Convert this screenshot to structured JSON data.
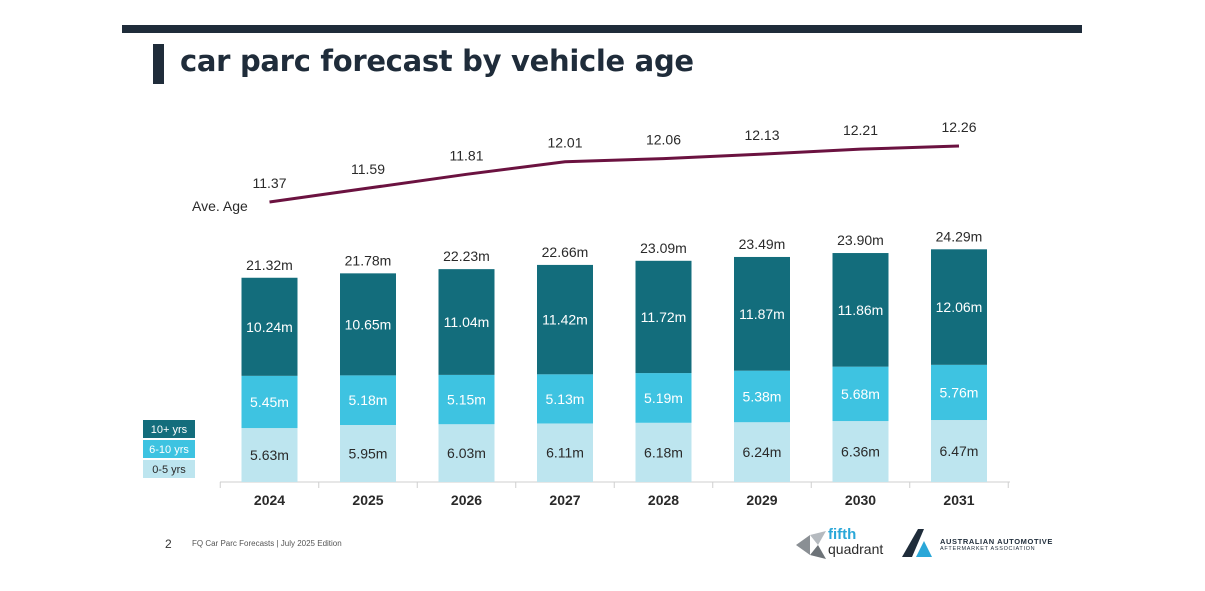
{
  "page": {
    "title": "car parc forecast by vehicle age",
    "page_number": "2",
    "footer_text": "FQ Car Parc Forecasts | July 2025 Edition",
    "logo1": {
      "line1": "fifth",
      "line2": "quadrant"
    },
    "logo2": {
      "line1": "AUSTRALIAN AUTOMOTIVE",
      "line2": "AFTERMARKET ASSOCIATION"
    }
  },
  "chart_data": {
    "type": "bar",
    "stacked": true,
    "categories": [
      "2024",
      "2025",
      "2026",
      "2027",
      "2028",
      "2029",
      "2030",
      "2031"
    ],
    "series": [
      {
        "name": "0-5 yrs",
        "values": [
          5.63,
          5.95,
          6.03,
          6.11,
          6.18,
          6.24,
          6.36,
          6.47
        ],
        "labels": [
          "5.63m",
          "5.95m",
          "6.03m",
          "6.11m",
          "6.18m",
          "6.24m",
          "6.36m",
          "6.47m"
        ],
        "color": "#bde5ef"
      },
      {
        "name": "6-10 yrs",
        "values": [
          5.45,
          5.18,
          5.15,
          5.13,
          5.19,
          5.38,
          5.68,
          5.76
        ],
        "labels": [
          "5.45m",
          "5.18m",
          "5.15m",
          "5.13m",
          "5.19m",
          "5.38m",
          "5.68m",
          "5.76m"
        ],
        "color": "#3ec3e1"
      },
      {
        "name": "10+ yrs",
        "values": [
          10.24,
          10.65,
          11.04,
          11.42,
          11.72,
          11.87,
          11.86,
          12.06
        ],
        "labels": [
          "10.24m",
          "10.65m",
          "11.04m",
          "11.42m",
          "11.72m",
          "11.87m",
          "11.86m",
          "12.06m"
        ],
        "color": "#136d7c"
      }
    ],
    "totals": {
      "values": [
        21.32,
        21.78,
        22.23,
        22.66,
        23.09,
        23.49,
        23.9,
        24.29
      ],
      "labels": [
        "21.32m",
        "21.78m",
        "22.23m",
        "22.66m",
        "23.09m",
        "23.49m",
        "23.90m",
        "24.29m"
      ]
    },
    "line": {
      "name": "Ave. Age",
      "values": [
        11.37,
        11.59,
        11.81,
        12.01,
        12.06,
        12.13,
        12.21,
        12.26
      ],
      "labels": [
        "11.37",
        "11.59",
        "11.81",
        "12.01",
        "12.06",
        "12.13",
        "12.21",
        "12.26"
      ],
      "color": "#6b1240"
    },
    "legend": {
      "placement": "bottom-left",
      "order": [
        "10+ yrs",
        "6-10 yrs",
        "0-5 yrs"
      ]
    },
    "ylim": [
      0,
      24.29
    ],
    "grid": false
  }
}
